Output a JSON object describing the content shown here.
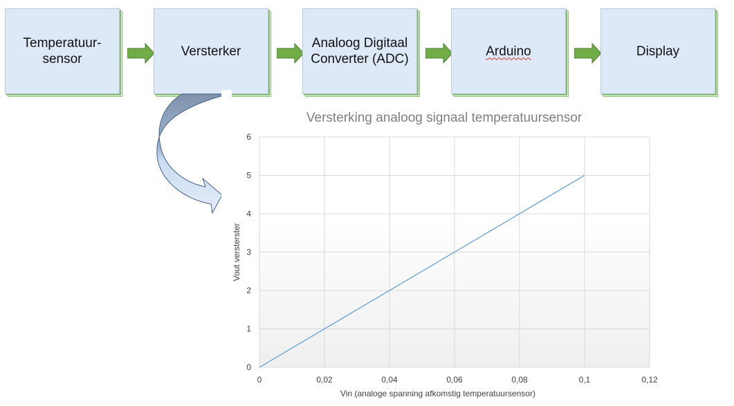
{
  "blocks": [
    {
      "label": "Temperatuur-\nsensor"
    },
    {
      "label": "Versterker"
    },
    {
      "label": "Analoog Digitaal\nConverter (ADC)"
    },
    {
      "label": "Arduino"
    },
    {
      "label": "Display"
    }
  ],
  "colors": {
    "block_fill": "#dde9f6",
    "arrow_fill": "#70ad47",
    "curved_arrow": "#b7cde6",
    "line": "#5b9bd5"
  },
  "chart_data": {
    "type": "line",
    "title": "Versterking analoog signaal temperatuursensor",
    "xlabel": "Vin (analoge spanning afkomstig temperatuursensor)",
    "ylabel": "Vout versterster",
    "xlim": [
      0,
      0.12
    ],
    "ylim": [
      0,
      6
    ],
    "x_ticks": [
      "0",
      "0,02",
      "0,04",
      "0,06",
      "0,08",
      "0,1",
      "0,12"
    ],
    "y_ticks": [
      "0",
      "1",
      "2",
      "3",
      "4",
      "5",
      "6"
    ],
    "grid": true,
    "series": [
      {
        "x": [
          0,
          0.1
        ],
        "y": [
          0,
          5
        ]
      }
    ]
  }
}
